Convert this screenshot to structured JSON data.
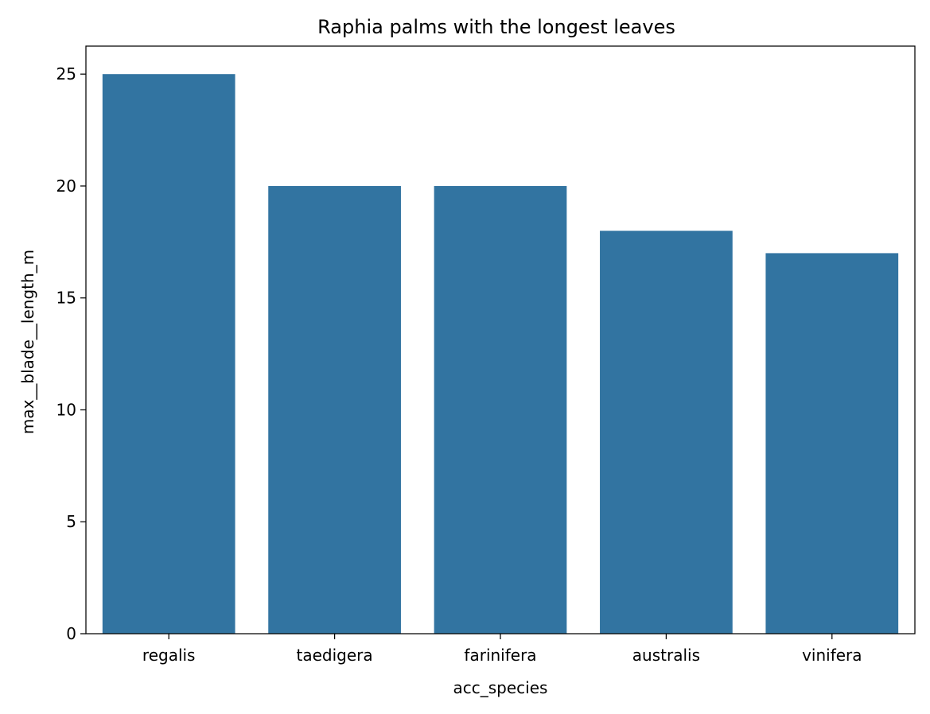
{
  "chart_data": {
    "type": "bar",
    "title": "Raphia palms with the longest leaves",
    "xlabel": "acc_species",
    "ylabel": "max__blade__length_m",
    "categories": [
      "regalis",
      "taedigera",
      "farinifera",
      "australis",
      "vinifera"
    ],
    "values": [
      25,
      20,
      20,
      18,
      17
    ],
    "ylim": [
      0,
      26.25
    ],
    "yticks": [
      0,
      5,
      10,
      15,
      20,
      25
    ],
    "bar_color": "#3274a1",
    "grid": false,
    "legend": "none"
  }
}
